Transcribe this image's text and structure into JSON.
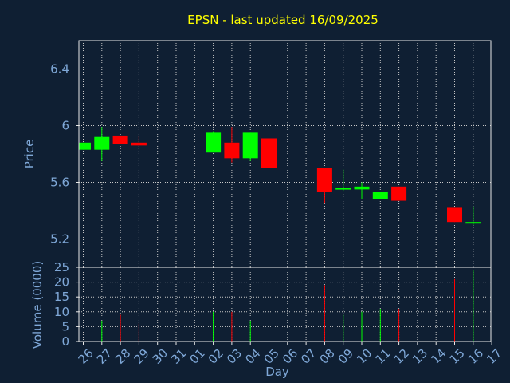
{
  "colors": {
    "background": "#0f1f33",
    "title": "#ffff00",
    "axis_text": "#7fa8d8",
    "frame": "#e8e8e8",
    "grid": "#c8c8c8",
    "up": "#00ff00",
    "down": "#ff0000"
  },
  "chart_data": {
    "type": "candlestick",
    "title": "EPSN - last updated 16/09/2025",
    "xlabel": "Day",
    "price_panel": {
      "ylabel": "Price",
      "ylim": [
        5.0,
        6.6
      ],
      "yticks": [
        "5.2",
        "5.6",
        "6",
        "6.4"
      ],
      "ytick_values": [
        5.2,
        5.6,
        6.0,
        6.4
      ]
    },
    "volume_panel": {
      "ylabel": "Volume (0000)",
      "ylim": [
        0,
        25
      ],
      "yticks": [
        "0",
        "5",
        "10",
        "15",
        "20",
        "25"
      ],
      "ytick_values": [
        0,
        5,
        10,
        15,
        20,
        25
      ]
    },
    "x_ticks": [
      "26",
      "27",
      "28",
      "29",
      "30",
      "31",
      "01",
      "02",
      "03",
      "04",
      "05",
      "06",
      "07",
      "08",
      "09",
      "10",
      "11",
      "12",
      "13",
      "14",
      "15",
      "16",
      "17"
    ],
    "grid": true,
    "candles": [
      {
        "day": "26",
        "open": 5.83,
        "close": 5.88,
        "high": 5.88,
        "low": 5.83,
        "volume": 0
      },
      {
        "day": "27",
        "open": 5.83,
        "close": 5.92,
        "high": 5.99,
        "low": 5.75,
        "volume": 7
      },
      {
        "day": "28",
        "open": 5.93,
        "close": 5.87,
        "high": 5.93,
        "low": 5.87,
        "volume": 9
      },
      {
        "day": "29",
        "open": 5.88,
        "close": 5.86,
        "high": 5.93,
        "low": 5.86,
        "volume": 6
      },
      {
        "day": "02",
        "open": 5.81,
        "close": 5.95,
        "high": 5.96,
        "low": 5.81,
        "volume": 10
      },
      {
        "day": "03",
        "open": 5.88,
        "close": 5.77,
        "high": 5.99,
        "low": 5.74,
        "volume": 10
      },
      {
        "day": "04",
        "open": 5.77,
        "close": 5.95,
        "high": 5.95,
        "low": 5.75,
        "volume": 7
      },
      {
        "day": "05",
        "open": 5.91,
        "close": 5.7,
        "high": 5.96,
        "low": 5.68,
        "volume": 8
      },
      {
        "day": "08",
        "open": 5.7,
        "close": 5.53,
        "high": 5.7,
        "low": 5.45,
        "volume": 19
      },
      {
        "day": "09",
        "open": 5.55,
        "close": 5.56,
        "high": 5.69,
        "low": 5.54,
        "volume": 9
      },
      {
        "day": "10",
        "open": 5.55,
        "close": 5.57,
        "high": 5.6,
        "low": 5.48,
        "volume": 10
      },
      {
        "day": "11",
        "open": 5.48,
        "close": 5.53,
        "high": 5.53,
        "low": 5.48,
        "volume": 11
      },
      {
        "day": "12",
        "open": 5.57,
        "close": 5.47,
        "high": 5.57,
        "low": 5.47,
        "volume": 11
      },
      {
        "day": "15",
        "open": 5.42,
        "close": 5.32,
        "high": 5.42,
        "low": 5.32,
        "volume": 21
      },
      {
        "day": "16",
        "open": 5.31,
        "close": 5.32,
        "high": 5.43,
        "low": 5.3,
        "volume": 24
      }
    ]
  }
}
